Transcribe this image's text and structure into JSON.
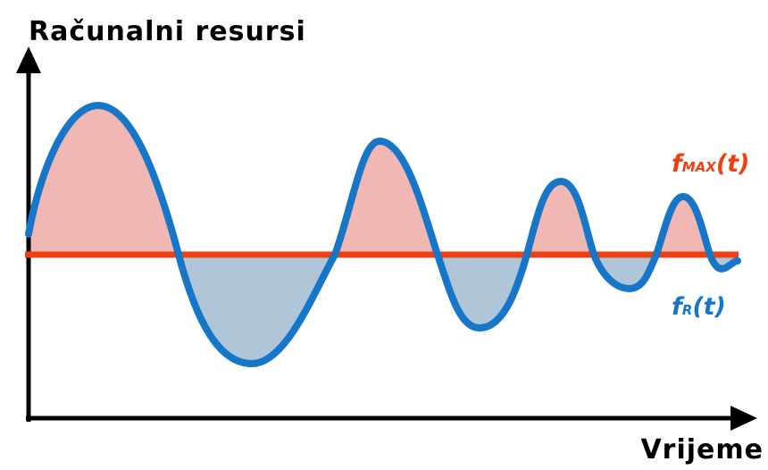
{
  "y_axis_label": "Računalni resursi",
  "x_axis_label": "Vrijeme",
  "labels": {
    "max": {
      "base": "f",
      "sub": "MAX",
      "arg": "(t)"
    },
    "resources": {
      "base": "f",
      "sub": "R",
      "arg": "(t)"
    }
  }
}
